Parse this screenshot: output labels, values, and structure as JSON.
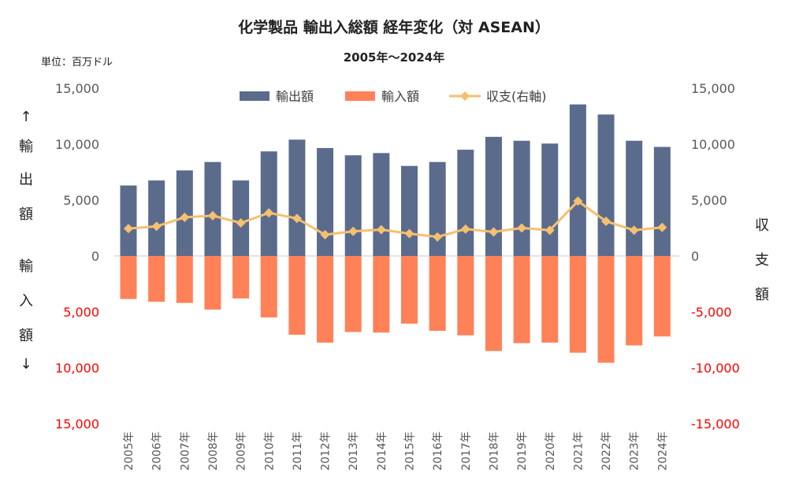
{
  "chart_data": {
    "type": "bar",
    "title": "化学製品 輸出入総額 経年変化（対 ASEAN）",
    "subtitle": "2005年～2024年",
    "unit_label": "単位：百万ドル",
    "categories": [
      "2005年",
      "2006年",
      "2007年",
      "2008年",
      "2009年",
      "2010年",
      "2011年",
      "2012年",
      "2013年",
      "2014年",
      "2015年",
      "2016年",
      "2017年",
      "2018年",
      "2019年",
      "2020年",
      "2021年",
      "2022年",
      "2023年",
      "2024年"
    ],
    "series": [
      {
        "name": "輸出額",
        "type": "bar",
        "color": "#5B6B8C",
        "values": [
          6300,
          6750,
          7650,
          8400,
          6750,
          9350,
          10400,
          9650,
          9000,
          9200,
          8050,
          8400,
          9500,
          10650,
          10300,
          10050,
          13550,
          12650,
          10300,
          9750
        ]
      },
      {
        "name": "輸入額",
        "type": "bar",
        "color": "#FF8158",
        "values": [
          3850,
          4100,
          4200,
          4800,
          3800,
          5500,
          7050,
          7750,
          6800,
          6850,
          6050,
          6700,
          7100,
          8500,
          7800,
          7750,
          8650,
          9550,
          8000,
          7200
        ]
      },
      {
        "name": "収支(右軸)",
        "type": "line",
        "color": "#F5C06F",
        "values": [
          2450,
          2650,
          3450,
          3600,
          2950,
          3850,
          3350,
          1900,
          2200,
          2350,
          2000,
          1700,
          2400,
          2150,
          2500,
          2300,
          4900,
          3100,
          2300,
          2550
        ]
      }
    ],
    "left_axis": {
      "label": "↑輸出額 輸入額↓",
      "label_chars_top": [
        "↑",
        "輸",
        "出",
        "額"
      ],
      "label_chars_bottom": [
        "輸",
        "入",
        "額",
        "↓"
      ],
      "ticks": [
        15000,
        10000,
        5000,
        0,
        -5000,
        -10000,
        -15000
      ],
      "tick_labels": [
        "15,000",
        "10,000",
        "5,000",
        "0",
        "5,000",
        "10,000",
        "15,000"
      ],
      "ylim": [
        -15000,
        15000
      ]
    },
    "right_axis": {
      "label": "収支額",
      "label_chars": [
        "収",
        "支",
        "額"
      ],
      "ticks": [
        15000,
        10000,
        5000,
        0,
        -5000,
        -10000,
        -15000
      ],
      "tick_labels": [
        "15,000",
        "10,000",
        "5,000",
        "0",
        "-5,000",
        "-10,000",
        "-15,000"
      ],
      "ylim": [
        -15000,
        15000
      ]
    },
    "legend_position": "top",
    "grid": false,
    "colors": {
      "export": "#5B6B8C",
      "import": "#FF8158",
      "balance": "#F5C06F",
      "negative_tick": "#FF0000"
    }
  }
}
